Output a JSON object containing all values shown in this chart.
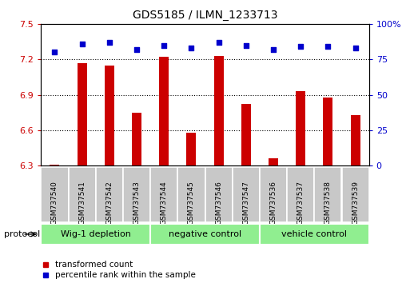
{
  "title": "GDS5185 / ILMN_1233713",
  "samples": [
    "GSM737540",
    "GSM737541",
    "GSM737542",
    "GSM737543",
    "GSM737544",
    "GSM737545",
    "GSM737546",
    "GSM737547",
    "GSM737536",
    "GSM737537",
    "GSM737538",
    "GSM737539"
  ],
  "bar_values": [
    6.31,
    7.17,
    7.15,
    6.75,
    7.22,
    6.58,
    7.23,
    6.82,
    6.36,
    6.93,
    6.88,
    6.73
  ],
  "dot_values": [
    80,
    86,
    87,
    82,
    85,
    83,
    87,
    85,
    82,
    84,
    84,
    83
  ],
  "ylim_left": [
    6.3,
    7.5
  ],
  "ylim_right": [
    0,
    100
  ],
  "yticks_left": [
    6.3,
    6.6,
    6.9,
    7.2,
    7.5
  ],
  "yticks_right": [
    0,
    25,
    50,
    75,
    100
  ],
  "bar_color": "#CC0000",
  "dot_color": "#0000CC",
  "groups": [
    {
      "label": "Wig-1 depletion",
      "start": 0,
      "end": 3
    },
    {
      "label": "negative control",
      "start": 4,
      "end": 7
    },
    {
      "label": "vehicle control",
      "start": 8,
      "end": 11
    }
  ],
  "group_bg_color": "#90EE90",
  "sample_bg_color": "#C8C8C8",
  "protocol_label": "protocol",
  "legend_red": "transformed count",
  "legend_blue": "percentile rank within the sample"
}
